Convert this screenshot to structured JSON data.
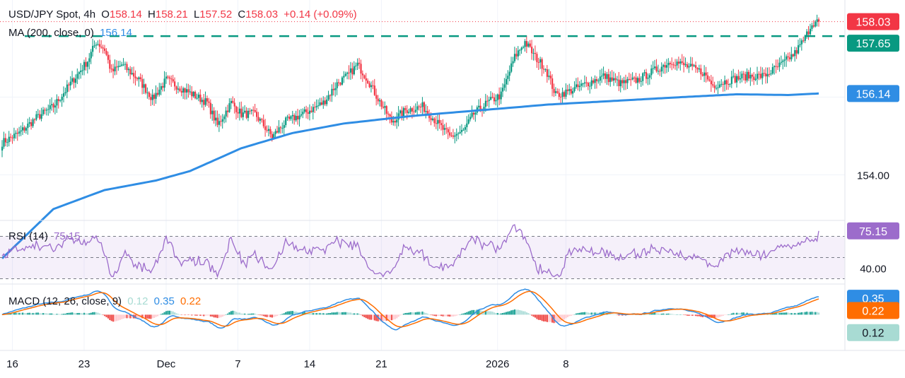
{
  "header": {
    "symbol": "USD/JPY Spot, 4h",
    "o_label": "O",
    "o": "158.14",
    "h_label": "H",
    "h": "158.21",
    "l_label": "L",
    "l": "157.52",
    "c_label": "C",
    "c": "158.03",
    "change": "+0.14 (+0.09%)",
    "ma_label": "MA (200, close, 0)",
    "ma_value": "156.14"
  },
  "colors": {
    "up": "#089981",
    "down": "#f23645",
    "ma": "#2f8de4",
    "rsi": "#9c6ccb",
    "macd": "#2f8de4",
    "signal": "#ff6d00",
    "resistance": "#089981",
    "text": "#131722"
  },
  "chart_data": [
    {
      "type": "candlestick",
      "title": "USD/JPY Spot, 4h",
      "x_ticks": [
        "16",
        "23",
        "Dec",
        "7",
        "14",
        "21",
        "2026",
        "8"
      ],
      "y_ticks": [
        154.0
      ],
      "price_labels": {
        "last": 158.03,
        "resistance": 157.65,
        "ma200": 156.14,
        "tick": "154.00"
      },
      "resistance_level": 157.65,
      "last_price": 158.03,
      "ylim": [
        152.8,
        158.6
      ],
      "close_anchors": [
        [
          0,
          154.85
        ],
        [
          10,
          155.1
        ],
        [
          20,
          155.5
        ],
        [
          30,
          155.8
        ],
        [
          40,
          156.4
        ],
        [
          50,
          157.0
        ],
        [
          55,
          157.5
        ],
        [
          60,
          157.3
        ],
        [
          64,
          156.7
        ],
        [
          70,
          156.9
        ],
        [
          80,
          156.5
        ],
        [
          88,
          156.0
        ],
        [
          96,
          156.5
        ],
        [
          104,
          156.3
        ],
        [
          112,
          156.1
        ],
        [
          120,
          155.9
        ],
        [
          126,
          155.3
        ],
        [
          134,
          155.9
        ],
        [
          140,
          155.6
        ],
        [
          148,
          155.6
        ],
        [
          158,
          155.0
        ],
        [
          166,
          155.4
        ],
        [
          176,
          155.6
        ],
        [
          188,
          155.9
        ],
        [
          196,
          156.4
        ],
        [
          202,
          156.6
        ],
        [
          208,
          156.9
        ],
        [
          214,
          156.5
        ],
        [
          220,
          156.0
        ],
        [
          228,
          155.4
        ],
        [
          236,
          155.7
        ],
        [
          246,
          155.8
        ],
        [
          254,
          155.4
        ],
        [
          262,
          155.0
        ],
        [
          270,
          155.15
        ],
        [
          276,
          155.6
        ],
        [
          284,
          155.9
        ],
        [
          292,
          156.1
        ],
        [
          300,
          157.1
        ],
        [
          306,
          157.5
        ],
        [
          312,
          157.1
        ],
        [
          318,
          156.8
        ],
        [
          324,
          156.1
        ],
        [
          332,
          156.2
        ],
        [
          342,
          156.4
        ],
        [
          352,
          156.6
        ],
        [
          362,
          156.4
        ],
        [
          372,
          156.5
        ],
        [
          380,
          156.7
        ],
        [
          392,
          157.0
        ],
        [
          404,
          156.8
        ],
        [
          410,
          156.7
        ],
        [
          416,
          156.35
        ],
        [
          426,
          156.5
        ],
        [
          436,
          156.6
        ],
        [
          446,
          156.6
        ],
        [
          456,
          156.9
        ],
        [
          464,
          157.2
        ],
        [
          470,
          157.6
        ],
        [
          474,
          158.0
        ],
        [
          478,
          158.03
        ]
      ],
      "ma200_anchors": [
        [
          0,
          151.8
        ],
        [
          30,
          153.1
        ],
        [
          60,
          153.6
        ],
        [
          90,
          153.85
        ],
        [
          110,
          154.1
        ],
        [
          140,
          154.7
        ],
        [
          170,
          155.1
        ],
        [
          200,
          155.35
        ],
        [
          240,
          155.55
        ],
        [
          280,
          155.7
        ],
        [
          320,
          155.85
        ],
        [
          360,
          155.95
        ],
        [
          400,
          156.05
        ],
        [
          430,
          156.12
        ],
        [
          460,
          156.1
        ],
        [
          478,
          156.14
        ]
      ]
    },
    {
      "type": "line",
      "title": "RSI (14)",
      "label": "RSI (14)",
      "value_label": "75.15",
      "value": 75.15,
      "y_ticks": [
        40.0
      ],
      "levels": [
        70,
        50,
        30
      ],
      "ylim": [
        25,
        85
      ]
    },
    {
      "type": "bar",
      "title": "MACD (12, 26, close, 9)",
      "label": "MACD (12, 26, close, 9)",
      "values": {
        "histogram": 0.12,
        "macd": 0.35,
        "signal": 0.22
      },
      "value_labels": [
        "0.12",
        "0.35",
        "0.22"
      ],
      "ylim": [
        -0.7,
        0.6
      ]
    }
  ]
}
